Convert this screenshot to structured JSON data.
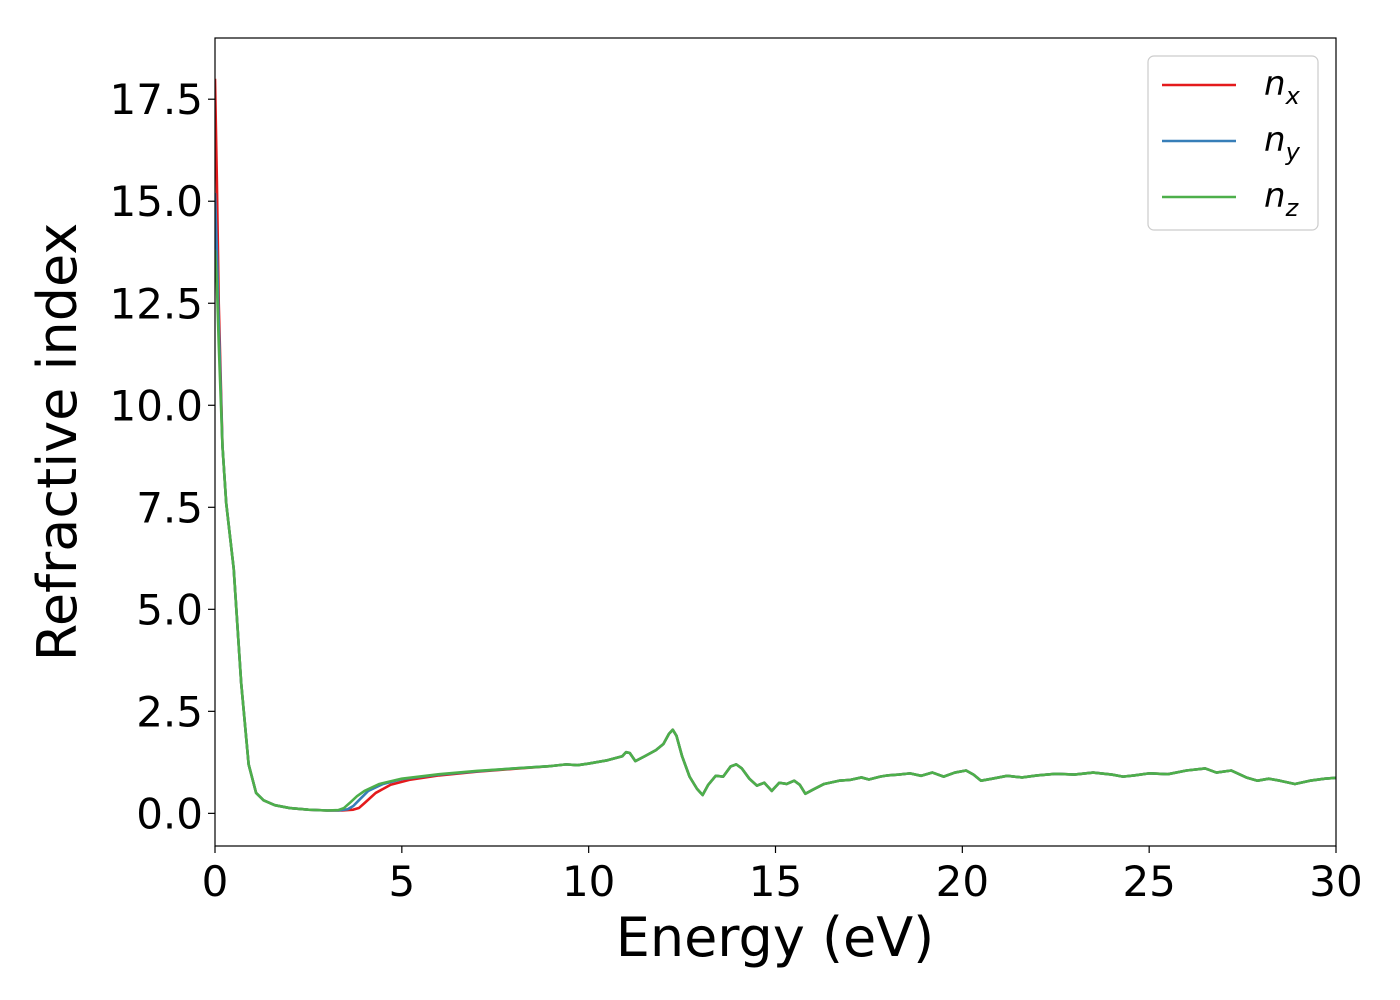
{
  "chart_data": {
    "type": "line",
    "title": "",
    "xlabel": "Energy (eV)",
    "ylabel": "Refractive index",
    "xlim": [
      0,
      30
    ],
    "ylim": [
      -0.8,
      19.0
    ],
    "xticks": [
      0,
      5,
      10,
      15,
      20,
      25,
      30
    ],
    "xtick_labels": [
      "0",
      "5",
      "10",
      "15",
      "20",
      "25",
      "30"
    ],
    "yticks": [
      0.0,
      2.5,
      5.0,
      7.5,
      10.0,
      12.5,
      15.0,
      17.5
    ],
    "ytick_labels": [
      "0.0",
      "2.5",
      "5.0",
      "7.5",
      "10.0",
      "12.5",
      "15.0",
      "17.5"
    ],
    "grid": false,
    "legend_position": "top-right",
    "series": [
      {
        "name": "n",
        "subscript": "x",
        "color": "#e41a1c",
        "x": [
          0.0,
          0.05,
          0.1,
          0.2,
          0.3,
          0.5,
          0.7,
          0.9,
          1.1,
          1.3,
          1.6,
          2.0,
          2.5,
          3.0,
          3.4,
          3.7,
          3.85,
          4.0,
          4.3,
          4.7,
          5.2,
          6.0,
          7.0,
          8.0,
          9.0,
          9.4,
          9.7,
          10.0,
          10.5,
          10.9,
          11.0,
          11.1,
          11.25,
          11.5,
          11.8,
          12.0,
          12.15,
          12.25,
          12.35,
          12.5,
          12.7,
          12.9,
          13.05,
          13.2,
          13.4,
          13.6,
          13.8,
          13.95,
          14.1,
          14.3,
          14.5,
          14.7,
          14.9,
          15.1,
          15.3,
          15.5,
          15.65,
          15.8,
          16.0,
          16.3,
          16.7,
          17.0,
          17.3,
          17.5,
          17.8,
          18.0,
          18.3,
          18.6,
          18.9,
          19.2,
          19.5,
          19.8,
          20.1,
          20.3,
          20.5,
          20.8,
          21.2,
          21.6,
          22.0,
          22.5,
          23.0,
          23.5,
          24.0,
          24.3,
          24.6,
          25.0,
          25.5,
          26.0,
          26.5,
          26.8,
          27.2,
          27.6,
          27.9,
          28.2,
          28.5,
          28.9,
          29.3,
          29.7,
          30.0
        ],
        "y": [
          18.0,
          15.5,
          12.5,
          9.0,
          7.6,
          6.0,
          3.2,
          1.2,
          0.5,
          0.32,
          0.2,
          0.13,
          0.09,
          0.07,
          0.07,
          0.09,
          0.13,
          0.25,
          0.5,
          0.7,
          0.82,
          0.93,
          1.02,
          1.09,
          1.16,
          1.2,
          1.18,
          1.22,
          1.3,
          1.4,
          1.5,
          1.48,
          1.28,
          1.4,
          1.55,
          1.7,
          1.95,
          2.05,
          1.9,
          1.4,
          0.9,
          0.6,
          0.45,
          0.7,
          0.92,
          0.9,
          1.15,
          1.2,
          1.1,
          0.85,
          0.68,
          0.75,
          0.55,
          0.75,
          0.72,
          0.8,
          0.7,
          0.48,
          0.58,
          0.72,
          0.8,
          0.82,
          0.88,
          0.83,
          0.9,
          0.93,
          0.95,
          0.98,
          0.92,
          1.0,
          0.9,
          1.0,
          1.05,
          0.95,
          0.8,
          0.85,
          0.92,
          0.88,
          0.93,
          0.97,
          0.95,
          1.0,
          0.95,
          0.9,
          0.93,
          0.98,
          0.96,
          1.05,
          1.1,
          1.0,
          1.05,
          0.88,
          0.8,
          0.85,
          0.8,
          0.72,
          0.8,
          0.85,
          0.87
        ]
      },
      {
        "name": "n",
        "subscript": "y",
        "color": "#377eb8",
        "x": [
          0.0,
          0.05,
          0.1,
          0.2,
          0.3,
          0.5,
          0.7,
          0.9,
          1.1,
          1.3,
          1.6,
          2.0,
          2.5,
          3.0,
          3.3,
          3.55,
          3.7,
          3.85,
          4.1,
          4.5,
          5.0,
          6.0,
          7.0,
          8.0,
          9.0,
          9.4,
          9.7,
          10.0,
          10.5,
          10.9,
          11.0,
          11.1,
          11.25,
          11.5,
          11.8,
          12.0,
          12.15,
          12.25,
          12.35,
          12.5,
          12.7,
          12.9,
          13.05,
          13.2,
          13.4,
          13.6,
          13.8,
          13.95,
          14.1,
          14.3,
          14.5,
          14.7,
          14.9,
          15.1,
          15.3,
          15.5,
          15.65,
          15.8,
          16.0,
          16.3,
          16.7,
          17.0,
          17.3,
          17.5,
          17.8,
          18.0,
          18.3,
          18.6,
          18.9,
          19.2,
          19.5,
          19.8,
          20.1,
          20.3,
          20.5,
          20.8,
          21.2,
          21.6,
          22.0,
          22.5,
          23.0,
          23.5,
          24.0,
          24.3,
          24.6,
          25.0,
          25.5,
          26.0,
          26.5,
          26.8,
          27.2,
          27.6,
          27.9,
          28.2,
          28.5,
          28.9,
          29.3,
          29.7,
          30.0
        ],
        "y": [
          15.2,
          13.8,
          12.0,
          9.0,
          7.6,
          6.0,
          3.2,
          1.2,
          0.5,
          0.32,
          0.2,
          0.13,
          0.09,
          0.07,
          0.07,
          0.1,
          0.18,
          0.32,
          0.55,
          0.72,
          0.84,
          0.95,
          1.03,
          1.1,
          1.16,
          1.2,
          1.18,
          1.22,
          1.3,
          1.4,
          1.5,
          1.48,
          1.28,
          1.4,
          1.55,
          1.7,
          1.95,
          2.05,
          1.9,
          1.4,
          0.9,
          0.6,
          0.45,
          0.7,
          0.92,
          0.9,
          1.15,
          1.2,
          1.1,
          0.85,
          0.68,
          0.75,
          0.55,
          0.75,
          0.72,
          0.8,
          0.7,
          0.48,
          0.58,
          0.72,
          0.8,
          0.82,
          0.88,
          0.83,
          0.9,
          0.93,
          0.95,
          0.98,
          0.92,
          1.0,
          0.9,
          1.0,
          1.05,
          0.95,
          0.8,
          0.85,
          0.92,
          0.88,
          0.93,
          0.97,
          0.95,
          1.0,
          0.95,
          0.9,
          0.93,
          0.98,
          0.96,
          1.05,
          1.1,
          1.0,
          1.05,
          0.88,
          0.8,
          0.85,
          0.8,
          0.72,
          0.8,
          0.85,
          0.87
        ]
      },
      {
        "name": "n",
        "subscript": "z",
        "color": "#4daf4a",
        "x": [
          0.0,
          0.05,
          0.1,
          0.2,
          0.3,
          0.5,
          0.7,
          0.9,
          1.1,
          1.3,
          1.6,
          2.0,
          2.5,
          3.0,
          3.3,
          3.45,
          3.6,
          3.8,
          4.0,
          4.4,
          5.0,
          6.0,
          7.0,
          8.0,
          9.0,
          9.4,
          9.7,
          10.0,
          10.5,
          10.9,
          11.0,
          11.1,
          11.25,
          11.5,
          11.8,
          12.0,
          12.15,
          12.25,
          12.35,
          12.5,
          12.7,
          12.9,
          13.05,
          13.2,
          13.4,
          13.6,
          13.8,
          13.95,
          14.1,
          14.3,
          14.5,
          14.7,
          14.9,
          15.1,
          15.3,
          15.5,
          15.65,
          15.8,
          16.0,
          16.3,
          16.7,
          17.0,
          17.3,
          17.5,
          17.8,
          18.0,
          18.3,
          18.6,
          18.9,
          19.2,
          19.5,
          19.8,
          20.1,
          20.3,
          20.5,
          20.8,
          21.2,
          21.6,
          22.0,
          22.5,
          23.0,
          23.5,
          24.0,
          24.3,
          24.6,
          25.0,
          25.5,
          26.0,
          26.5,
          26.8,
          27.2,
          27.6,
          27.9,
          28.2,
          28.5,
          28.9,
          29.3,
          29.7,
          30.0
        ],
        "y": [
          13.8,
          13.0,
          11.5,
          9.0,
          7.6,
          6.0,
          3.2,
          1.2,
          0.5,
          0.32,
          0.2,
          0.13,
          0.09,
          0.07,
          0.08,
          0.13,
          0.25,
          0.42,
          0.55,
          0.72,
          0.85,
          0.96,
          1.04,
          1.1,
          1.16,
          1.2,
          1.18,
          1.22,
          1.3,
          1.4,
          1.5,
          1.48,
          1.28,
          1.4,
          1.55,
          1.7,
          1.95,
          2.05,
          1.9,
          1.4,
          0.9,
          0.6,
          0.45,
          0.7,
          0.92,
          0.9,
          1.15,
          1.2,
          1.1,
          0.85,
          0.68,
          0.75,
          0.55,
          0.75,
          0.72,
          0.8,
          0.7,
          0.48,
          0.58,
          0.72,
          0.8,
          0.82,
          0.88,
          0.83,
          0.9,
          0.93,
          0.95,
          0.98,
          0.92,
          1.0,
          0.9,
          1.0,
          1.05,
          0.95,
          0.8,
          0.85,
          0.92,
          0.88,
          0.93,
          0.97,
          0.95,
          1.0,
          0.95,
          0.9,
          0.93,
          0.98,
          0.96,
          1.05,
          1.1,
          1.0,
          1.05,
          0.88,
          0.8,
          0.85,
          0.8,
          0.72,
          0.8,
          0.85,
          0.87
        ]
      }
    ]
  }
}
